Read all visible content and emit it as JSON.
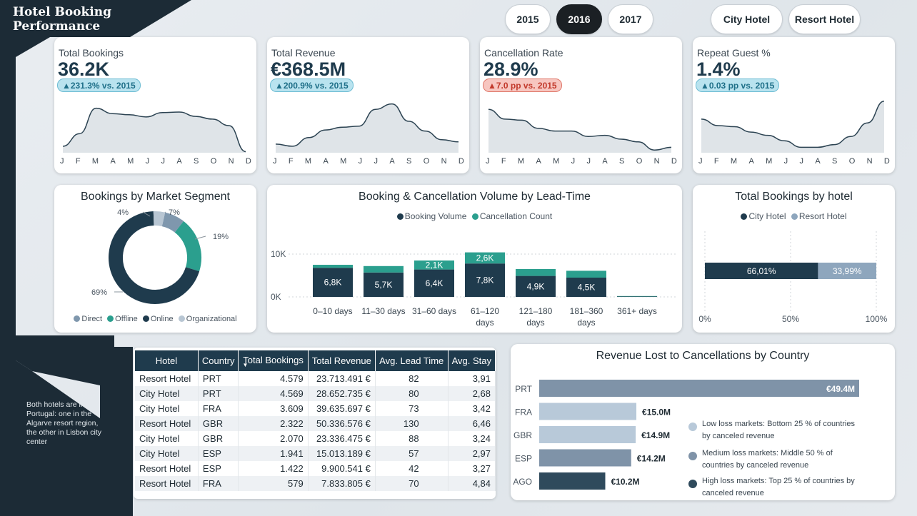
{
  "header": {
    "title_line1": "Hotel Booking",
    "title_line2": "Performance"
  },
  "filters": {
    "years": [
      "2015",
      "2016",
      "2017"
    ],
    "active_year": "2016",
    "hotels": [
      "City Hotel",
      "Resort Hotel"
    ]
  },
  "kpis": [
    {
      "label": "Total Bookings",
      "value": "36.2K",
      "delta": "▲231.3% vs. 2015",
      "trend": "up",
      "months": [
        "J",
        "F",
        "M",
        "A",
        "M",
        "J",
        "J",
        "A",
        "S",
        "O",
        "N",
        "D"
      ],
      "series": [
        0.12,
        0.35,
        0.82,
        0.72,
        0.7,
        0.66,
        0.74,
        0.75,
        0.67,
        0.62,
        0.5,
        0.02
      ]
    },
    {
      "label": "Total Revenue",
      "value": "€368.5M",
      "delta": "▲200.9% vs. 2015",
      "trend": "up",
      "months": [
        "J",
        "F",
        "M",
        "A",
        "M",
        "J",
        "J",
        "A",
        "S",
        "O",
        "N",
        "D"
      ],
      "series": [
        0.16,
        0.12,
        0.28,
        0.42,
        0.47,
        0.49,
        0.8,
        0.9,
        0.58,
        0.4,
        0.24,
        0.2
      ]
    },
    {
      "label": "Cancellation Rate",
      "value": "28.9%",
      "delta": "▲7.0 pp vs. 2015",
      "trend": "down",
      "months": [
        "J",
        "F",
        "M",
        "A",
        "M",
        "J",
        "J",
        "A",
        "S",
        "O",
        "N",
        "D"
      ],
      "series": [
        0.8,
        0.62,
        0.6,
        0.45,
        0.4,
        0.4,
        0.3,
        0.32,
        0.25,
        0.2,
        0.05,
        0.1
      ]
    },
    {
      "label": "Repeat Guest %",
      "value": "1.4%",
      "delta": "▲0.03 pp vs. 2015",
      "trend": "up",
      "months": [
        "J",
        "F",
        "M",
        "A",
        "M",
        "J",
        "J",
        "A",
        "S",
        "O",
        "N",
        "D"
      ],
      "series": [
        0.62,
        0.5,
        0.48,
        0.38,
        0.32,
        0.22,
        0.1,
        0.1,
        0.15,
        0.3,
        0.55,
        0.95
      ]
    }
  ],
  "segments": {
    "title": "Bookings by Market Segment",
    "legend": [
      "Direct",
      "Offline",
      "Online",
      "Organizational"
    ],
    "colors": [
      "#7f97ad",
      "#2b9f8e",
      "#1f3b4d",
      "#b8c6d3"
    ],
    "values": [
      7,
      19,
      69,
      4
    ],
    "labels": [
      "7%",
      "19%",
      "69%",
      "4%"
    ]
  },
  "leadtime": {
    "title": "Booking & Cancellation Volume by Lead-Time",
    "legend": [
      "Booking Volume",
      "Cancellation Count"
    ],
    "colors": [
      "#1f3b4d",
      "#2b9f8e"
    ],
    "y_ticks": [
      "10K",
      "0K"
    ],
    "categories": [
      [
        "0–10 days"
      ],
      [
        "11–30 days"
      ],
      [
        "31–60 days"
      ],
      [
        "61–120",
        "days"
      ],
      [
        "121–180",
        "days"
      ],
      [
        "181–360",
        "days"
      ],
      [
        "361+ days"
      ]
    ],
    "bookings": [
      6.8,
      5.7,
      6.4,
      7.8,
      4.9,
      4.5,
      0.1
    ],
    "cancellations": [
      0.7,
      1.5,
      2.1,
      2.6,
      1.6,
      1.6,
      0.1
    ],
    "booking_labels": [
      "6,8K",
      "5,7K",
      "6,4K",
      "7,8K",
      "4,9K",
      "4,5K",
      ""
    ],
    "cancel_labels": [
      "",
      "",
      "2,1K",
      "2,6K",
      "",
      "",
      ""
    ]
  },
  "byhotel": {
    "title": "Total Bookings by hotel",
    "legend": [
      "City Hotel",
      "Resort Hotel"
    ],
    "colors": [
      "#1f3b4d",
      "#8ea6bd"
    ],
    "values": [
      66.01,
      33.99
    ],
    "labels": [
      "66,01%",
      "33,99%"
    ],
    "x_ticks": [
      "0%",
      "50%",
      "100%"
    ]
  },
  "table": {
    "columns": [
      "Hotel",
      "Country",
      "Total Bookings",
      "Total Revenue",
      "Avg. Lead Time",
      "Avg. Stay"
    ],
    "rows": [
      [
        "Resort Hotel",
        "PRT",
        "4.579",
        "23.713.491 €",
        "82",
        "3,91"
      ],
      [
        "City Hotel",
        "PRT",
        "4.569",
        "28.652.735 €",
        "80",
        "2,68"
      ],
      [
        "City Hotel",
        "FRA",
        "3.609",
        "39.635.697 €",
        "73",
        "3,42"
      ],
      [
        "Resort Hotel",
        "GBR",
        "2.322",
        "50.336.576 €",
        "130",
        "6,46"
      ],
      [
        "City Hotel",
        "GBR",
        "2.070",
        "23.336.475 €",
        "88",
        "3,24"
      ],
      [
        "City Hotel",
        "ESP",
        "1.941",
        "15.013.189 €",
        "57",
        "2,97"
      ],
      [
        "Resort Hotel",
        "ESP",
        "1.422",
        "9.900.541 €",
        "42",
        "3,27"
      ],
      [
        "Resort Hotel",
        "FRA",
        "579",
        "7.833.805 €",
        "70",
        "4,84"
      ]
    ]
  },
  "side_note": "Both hotels are in Portugal: one in the Algarve resort region, the other in Lisbon city center",
  "revenue_lost": {
    "title": "Revenue Lost to Cancellations by Country",
    "countries": [
      "PRT",
      "FRA",
      "GBR",
      "ESP",
      "AGO"
    ],
    "values": [
      49.4,
      15.0,
      14.9,
      14.2,
      10.2
    ],
    "labels": [
      "€49.4M",
      "€15.0M",
      "€14.9M",
      "€14.2M",
      "€10.2M"
    ],
    "colors": [
      "#7f93a8",
      "#b8c9d9",
      "#b8c9d9",
      "#7f93a8",
      "#2f4a5c"
    ],
    "legend": [
      {
        "text": "Low loss markets: Bottom 25 % of countries by canceled revenue",
        "color": "#b8c9d9"
      },
      {
        "text": "Medium loss markets: Middle 50 % of countries by canceled revenue",
        "color": "#7f93a8"
      },
      {
        "text": "High loss markets: Top 25 % of countries by canceled revenue",
        "color": "#2f4a5c"
      }
    ]
  }
}
